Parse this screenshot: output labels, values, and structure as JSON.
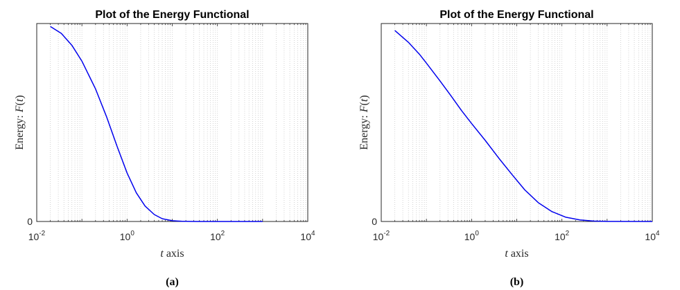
{
  "chart_data": [
    {
      "type": "line",
      "title": "Plot of the Energy Functional",
      "xlabel_var": "t",
      "xlabel_rest": " axis",
      "ylabel_prefix": "Energy: ",
      "ylabel_var": "F",
      "ylabel_open": "(",
      "ylabel_arg": "t",
      "ylabel_close": ")",
      "caption": "(a)",
      "x_scale": "log",
      "xlim": [
        0.01,
        10000
      ],
      "ylim": [
        0,
        1
      ],
      "grid": "x-minor-dotted",
      "legend": "none",
      "line_color": "#0000ee",
      "x_ticks": [
        {
          "value": 0.01,
          "base": "10",
          "exp": "-2"
        },
        {
          "value": 1,
          "base": "10",
          "exp": "0"
        },
        {
          "value": 100,
          "base": "10",
          "exp": "2"
        },
        {
          "value": 10000,
          "base": "10",
          "exp": "4"
        }
      ],
      "y_ticks": [
        {
          "value": 0,
          "label": "0"
        }
      ],
      "series": [
        {
          "x": [
            0.02,
            0.035,
            0.06,
            0.1,
            0.2,
            0.35,
            0.6,
            1,
            1.6,
            2.5,
            4,
            6,
            10,
            16,
            25,
            40,
            100,
            1000
          ],
          "y": [
            0.985,
            0.95,
            0.89,
            0.81,
            0.67,
            0.53,
            0.38,
            0.245,
            0.145,
            0.078,
            0.035,
            0.014,
            0.004,
            0.0012,
            0.0004,
            0.0001,
            0.0,
            0.0
          ]
        }
      ]
    },
    {
      "type": "line",
      "title": "Plot of the Energy Functional",
      "xlabel_var": "t",
      "xlabel_rest": " axis",
      "ylabel_prefix": "Energy: ",
      "ylabel_var": "F",
      "ylabel_open": "(",
      "ylabel_arg": "t",
      "ylabel_close": ")",
      "caption": "(b)",
      "x_scale": "log",
      "xlim": [
        0.01,
        10000
      ],
      "ylim": [
        0,
        1
      ],
      "grid": "x-minor-dotted",
      "legend": "none",
      "line_color": "#0000ee",
      "x_ticks": [
        {
          "value": 0.01,
          "base": "10",
          "exp": "-2"
        },
        {
          "value": 1,
          "base": "10",
          "exp": "0"
        },
        {
          "value": 100,
          "base": "10",
          "exp": "2"
        },
        {
          "value": 10000,
          "base": "10",
          "exp": "4"
        }
      ],
      "y_ticks": [
        {
          "value": 0,
          "label": "0"
        }
      ],
      "series": [
        {
          "x": [
            0.02,
            0.04,
            0.07,
            0.1,
            0.2,
            0.35,
            0.6,
            1,
            2,
            4,
            8,
            15,
            30,
            60,
            120,
            250,
            500,
            1000,
            10000
          ],
          "y": [
            0.965,
            0.905,
            0.845,
            0.8,
            0.71,
            0.635,
            0.56,
            0.495,
            0.41,
            0.32,
            0.235,
            0.16,
            0.095,
            0.05,
            0.022,
            0.008,
            0.002,
            0.0005,
            0.0
          ]
        }
      ]
    }
  ]
}
